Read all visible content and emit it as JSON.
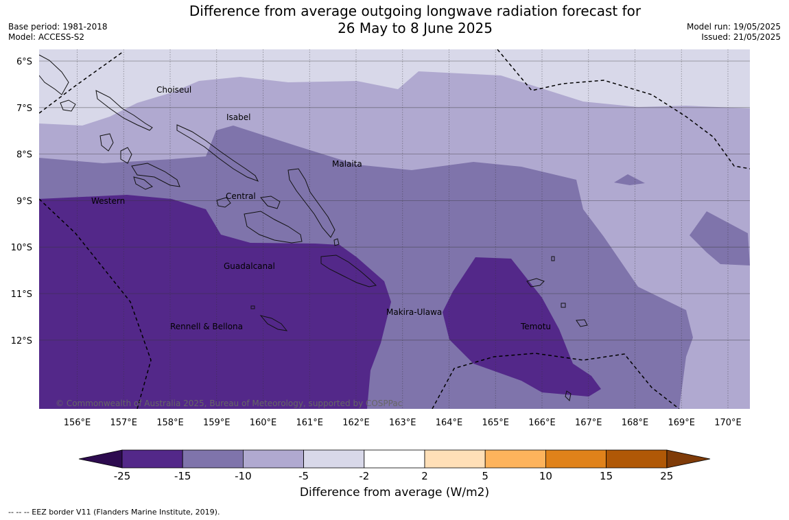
{
  "header": {
    "title_line1": "Difference from average outgoing longwave radiation forecast for",
    "title_line2": "26 May to 8 June 2025",
    "base_period": "Base period: 1981-2018",
    "model": "Model: ACCESS-S2",
    "model_run": "Model run: 19/05/2025",
    "issued": "Issued: 21/05/2025"
  },
  "map": {
    "lat_labels": [
      "6°S",
      "7°S",
      "8°S",
      "9°S",
      "10°S",
      "11°S",
      "12°S"
    ],
    "lon_labels": [
      "156°E",
      "157°E",
      "158°E",
      "159°E",
      "160°E",
      "161°E",
      "162°E",
      "163°E",
      "164°E",
      "165°E",
      "166°E",
      "167°E",
      "168°E",
      "169°E",
      "170°E"
    ],
    "places": [
      "Choiseul",
      "Isabel",
      "Malaita",
      "Western",
      "Central",
      "Guadalcanal",
      "Makira-Ulawa",
      "Rennell & Bellona",
      "Temotu"
    ],
    "copyright": "© Commonwealth of Australia 2025, Bureau of Meteorology, supported by COSPPac",
    "fill_colors": {
      "-25 to -15": "#532889",
      "-15 to -10": "#7f74ab",
      "-10 to -5": "#b0a9d0",
      "-5 to -2": "#d8d8e9"
    }
  },
  "legend": {
    "ticks": [
      "-25",
      "-15",
      "-10",
      "-5",
      "-2",
      "2",
      "5",
      "10",
      "15",
      "25"
    ],
    "colors": [
      "#532889",
      "#7f74ab",
      "#b0a9d0",
      "#d8d8e9",
      "#ffffff",
      "#ffdfb7",
      "#fdb35c",
      "#e0821a",
      "#b05806"
    ],
    "extend_low_color": "#2d0b4f",
    "extend_high_color": "#7f3b08",
    "title": "Difference from average (W/m2)"
  },
  "footnote": "--  --  -- EEZ border V11 (Flanders Marine Institute, 2019)."
}
